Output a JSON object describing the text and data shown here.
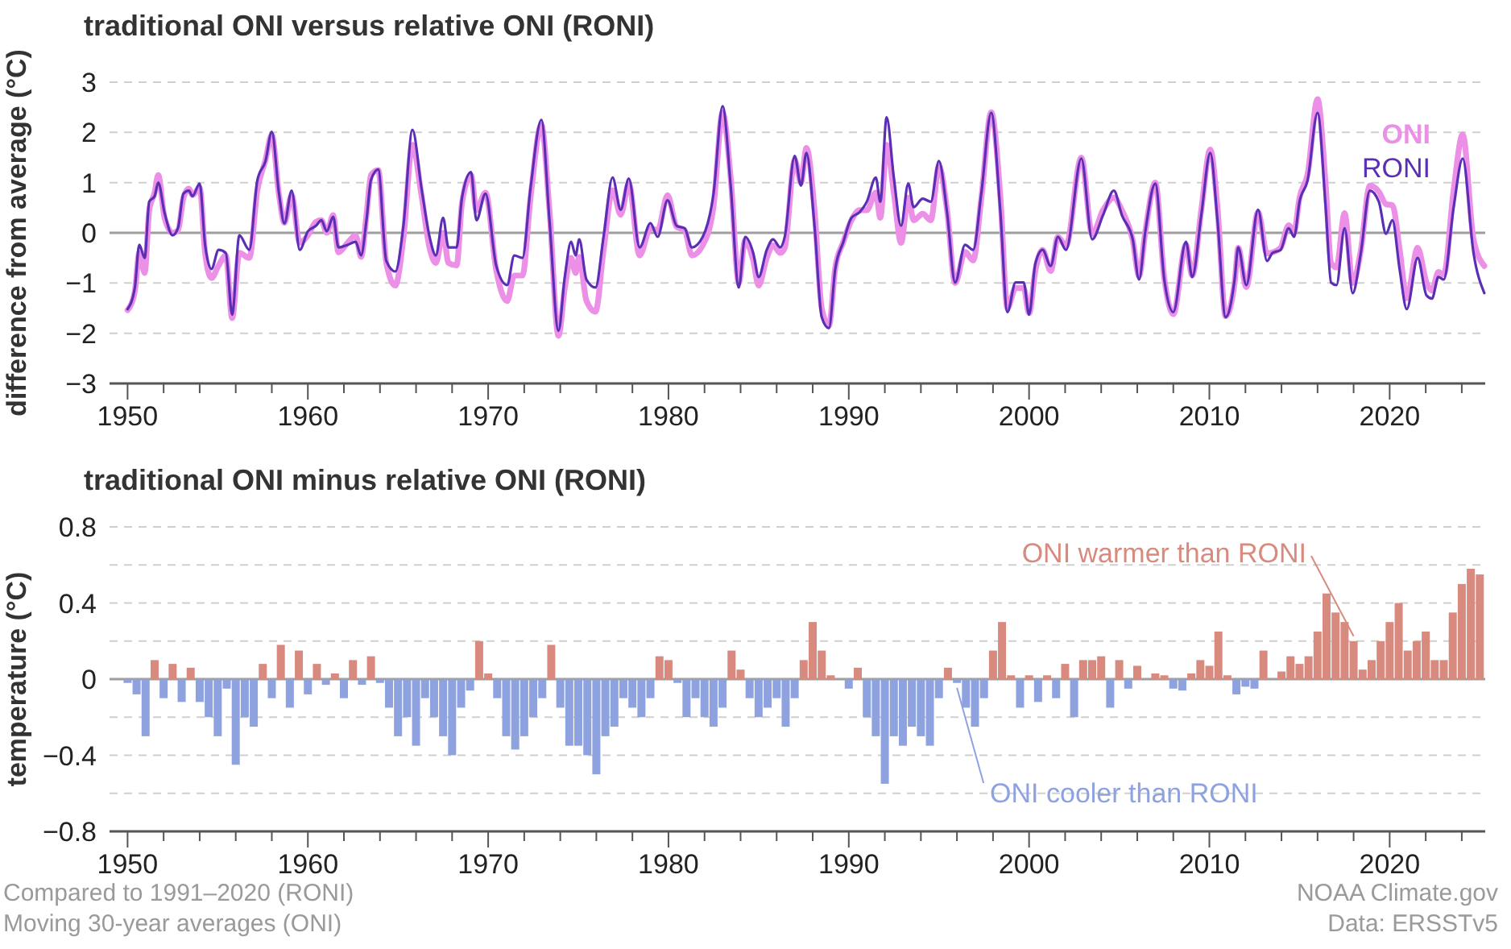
{
  "chart_data": [
    {
      "type": "line",
      "title": "traditional ONI versus relative ONI (RONI)",
      "ylabel": "difference from average (°C)",
      "grid": "y",
      "legend": false,
      "xlim": [
        1949,
        2025.3
      ],
      "ylim": [
        -3,
        3
      ],
      "xticks": [
        1950,
        {
          "value": 1952,
          "label": null
        },
        {
          "value": 1954,
          "label": null
        },
        {
          "value": 1956,
          "label": null
        },
        {
          "value": 1958,
          "label": null
        },
        1960,
        {
          "value": 1962,
          "label": null
        },
        {
          "value": 1964,
          "label": null
        },
        {
          "value": 1966,
          "label": null
        },
        {
          "value": 1968,
          "label": null
        },
        1970,
        {
          "value": 1972,
          "label": null
        },
        {
          "value": 1974,
          "label": null
        },
        {
          "value": 1976,
          "label": null
        },
        {
          "value": 1978,
          "label": null
        },
        1980,
        {
          "value": 1982,
          "label": null
        },
        {
          "value": 1984,
          "label": null
        },
        {
          "value": 1986,
          "label": null
        },
        {
          "value": 1988,
          "label": null
        },
        1990,
        {
          "value": 1992,
          "label": null
        },
        {
          "value": 1994,
          "label": null
        },
        {
          "value": 1996,
          "label": null
        },
        {
          "value": 1998,
          "label": null
        },
        2000,
        {
          "value": 2002,
          "label": null
        },
        {
          "value": 2004,
          "label": null
        },
        {
          "value": 2006,
          "label": null
        },
        {
          "value": 2008,
          "label": null
        },
        2010,
        {
          "value": 2012,
          "label": null
        },
        {
          "value": 2014,
          "label": null
        },
        {
          "value": 2016,
          "label": null
        },
        {
          "value": 2018,
          "label": null
        },
        2020,
        {
          "value": 2022,
          "label": null
        },
        {
          "value": 2024,
          "label": null
        }
      ],
      "yticks": [
        {
          "value": -3,
          "label": "−3"
        },
        {
          "value": -2,
          "label": "−2"
        },
        {
          "value": -1,
          "label": "−1"
        },
        0,
        1,
        2,
        3
      ],
      "ref_lines": [
        {
          "axis": "y",
          "value": 0,
          "color": "#9e9e9e"
        }
      ],
      "x": [
        1950.0,
        1950.4,
        1950.65,
        1950.95,
        1951.2,
        1951.5,
        1951.7,
        1952.05,
        1952.5,
        1952.8,
        1953.1,
        1953.4,
        1953.6,
        1954.0,
        1954.3,
        1954.65,
        1955.05,
        1955.45,
        1955.8,
        1956.2,
        1956.75,
        1957.2,
        1957.65,
        1958.0,
        1958.4,
        1958.7,
        1959.1,
        1959.55,
        1960.0,
        1960.45,
        1960.75,
        1961.05,
        1961.4,
        1961.7,
        1962.2,
        1962.65,
        1962.95,
        1963.25,
        1963.5,
        1963.9,
        1964.35,
        1964.85,
        1965.3,
        1965.8,
        1966.3,
        1966.75,
        1967.1,
        1967.5,
        1967.8,
        1968.25,
        1968.55,
        1969.05,
        1969.35,
        1969.85,
        1970.45,
        1971.05,
        1971.45,
        1971.9,
        1972.35,
        1972.95,
        1973.4,
        1973.9,
        1974.25,
        1974.6,
        1974.85,
        1975.05,
        1975.45,
        1975.95,
        1976.4,
        1976.9,
        1977.35,
        1977.8,
        1978.4,
        1979.0,
        1979.4,
        1979.95,
        1980.45,
        1980.9,
        1981.3,
        1981.9,
        1982.5,
        1983.0,
        1983.45,
        1983.9,
        1984.25,
        1984.7,
        1985.0,
        1985.45,
        1985.8,
        1986.2,
        1986.45,
        1987.0,
        1987.35,
        1987.65,
        1988.1,
        1988.5,
        1988.9,
        1989.25,
        1989.7,
        1990.15,
        1990.6,
        1991.0,
        1991.5,
        1991.75,
        1992.1,
        1992.5,
        1992.9,
        1993.3,
        1993.6,
        1994.1,
        1994.55,
        1995.0,
        1995.45,
        1995.9,
        1996.45,
        1996.9,
        1997.35,
        1997.9,
        1998.4,
        1998.8,
        1999.25,
        1999.7,
        2000.0,
        2000.35,
        2000.75,
        2001.2,
        2001.6,
        2002.05,
        2002.9,
        2003.5,
        2004.1,
        2004.7,
        2005.15,
        2005.75,
        2006.1,
        2006.45,
        2007.0,
        2007.5,
        2008.0,
        2008.7,
        2009.05,
        2009.55,
        2010.05,
        2010.45,
        2010.9,
        2011.4,
        2011.6,
        2012.05,
        2012.7,
        2013.2,
        2013.5,
        2013.95,
        2014.4,
        2014.7,
        2015.0,
        2015.45,
        2016.0,
        2016.45,
        2016.75,
        2017.05,
        2017.5,
        2017.95,
        2018.4,
        2018.9,
        2019.4,
        2019.8,
        2020.15,
        2020.55,
        2020.95,
        2021.55,
        2022.05,
        2022.35,
        2022.7,
        2023.0,
        2023.55,
        2024.05,
        2024.65,
        2025.25
      ],
      "series": [
        {
          "name": "ONI",
          "color": "#ec8fe6",
          "values": [
            -1.54,
            -1.17,
            -0.4,
            -0.8,
            0.45,
            0.8,
            1.15,
            0.3,
            0.0,
            0.05,
            0.7,
            0.88,
            0.75,
            0.9,
            -0.4,
            -0.9,
            -0.65,
            -0.45,
            -1.7,
            -0.4,
            -0.5,
            0.85,
            1.45,
            1.95,
            0.75,
            0.2,
            0.75,
            -0.2,
            -0.05,
            0.22,
            0.25,
            0.0,
            0.35,
            -0.39,
            -0.2,
            -0.05,
            -0.48,
            0.35,
            1.15,
            1.25,
            -0.6,
            -1.05,
            -0.1,
            1.75,
            0.75,
            -0.3,
            -0.6,
            0.0,
            -0.6,
            -0.65,
            0.6,
            1.15,
            0.45,
            0.8,
            -0.75,
            -1.36,
            -0.85,
            -0.85,
            0.7,
            2.15,
            0.45,
            -2.05,
            -1.1,
            -0.5,
            -0.8,
            -0.48,
            -1.35,
            -1.57,
            -0.35,
            0.85,
            0.36,
            0.98,
            -0.45,
            0.09,
            0.05,
            0.75,
            0.12,
            0.05,
            -0.45,
            -0.25,
            0.53,
            2.4,
            1.1,
            -1.0,
            -0.15,
            -0.55,
            -1.05,
            -0.5,
            -0.25,
            -0.4,
            -0.3,
            1.45,
            1.0,
            1.69,
            0.45,
            -1.5,
            -1.85,
            -0.7,
            -0.18,
            0.25,
            0.45,
            0.45,
            0.8,
            0.3,
            1.75,
            0.8,
            -0.2,
            0.7,
            0.25,
            0.38,
            0.25,
            1.33,
            0.45,
            -1.0,
            -0.38,
            -0.55,
            0.68,
            2.4,
            0.76,
            -1.5,
            -1.1,
            -1.1,
            -1.6,
            -0.75,
            -0.34,
            -0.76,
            -0.08,
            -0.26,
            1.5,
            -0.03,
            0.45,
            0.7,
            0.45,
            -0.15,
            -0.86,
            0.03,
            1.0,
            -0.9,
            -1.62,
            -0.24,
            -0.85,
            0.45,
            1.66,
            0.5,
            -1.66,
            -1.0,
            -0.3,
            -1.08,
            0.41,
            -0.41,
            -0.39,
            -0.3,
            0.15,
            0.02,
            0.7,
            1.17,
            2.66,
            0.96,
            -0.6,
            -0.69,
            0.39,
            -1.0,
            -0.35,
            0.94,
            0.82,
            0.57,
            0.55,
            -0.32,
            -1.3,
            -0.3,
            -1.0,
            -1.15,
            -0.78,
            -0.83,
            0.86,
            1.96,
            -0.13,
            -0.66
          ]
        },
        {
          "name": "RONI",
          "color": "#5a2fb5",
          "values": [
            -1.52,
            -1.1,
            -0.24,
            -0.5,
            0.62,
            0.73,
            1.0,
            0.4,
            -0.05,
            0.1,
            0.78,
            0.84,
            0.73,
            0.98,
            -0.24,
            -0.72,
            -0.34,
            -0.4,
            -1.63,
            -0.05,
            -0.34,
            1.05,
            1.43,
            2.01,
            0.78,
            0.19,
            0.84,
            -0.34,
            0.03,
            0.14,
            0.25,
            0.03,
            0.32,
            -0.29,
            -0.24,
            -0.18,
            -0.45,
            0.25,
            1.05,
            1.26,
            -0.56,
            -0.77,
            0.14,
            2.05,
            0.89,
            -0.08,
            -0.45,
            0.3,
            -0.29,
            -0.29,
            0.7,
            1.21,
            0.25,
            0.78,
            -0.66,
            -1.04,
            -0.45,
            -0.5,
            0.89,
            2.25,
            0.25,
            -1.95,
            -0.88,
            -0.18,
            -0.45,
            -0.13,
            -0.93,
            -1.09,
            -0.08,
            1.1,
            0.46,
            1.08,
            -0.29,
            0.19,
            -0.08,
            0.65,
            0.14,
            0.09,
            -0.29,
            -0.08,
            0.78,
            2.52,
            0.94,
            -1.09,
            -0.08,
            -0.4,
            -0.88,
            -0.34,
            -0.13,
            -0.29,
            -0.08,
            1.53,
            0.94,
            1.59,
            0.14,
            -1.68,
            -1.9,
            -0.72,
            -0.18,
            0.3,
            0.41,
            0.62,
            1.1,
            0.62,
            2.3,
            1.1,
            0.14,
            0.98,
            0.51,
            0.68,
            0.62,
            1.43,
            0.41,
            -0.99,
            -0.24,
            -0.34,
            0.78,
            2.39,
            0.46,
            -1.58,
            -0.99,
            -0.99,
            -1.63,
            -0.61,
            -0.34,
            -0.66,
            -0.08,
            -0.34,
            1.48,
            -0.13,
            0.35,
            0.84,
            0.35,
            -0.13,
            -0.93,
            0.03,
            0.98,
            -0.93,
            -1.58,
            -0.18,
            -0.88,
            0.35,
            1.59,
            0.25,
            -1.68,
            -0.93,
            -0.29,
            -1.04,
            0.46,
            -0.56,
            -0.4,
            -0.34,
            0.09,
            -0.08,
            0.62,
            1.05,
            2.39,
            0.51,
            -0.99,
            -1.04,
            0.09,
            -1.2,
            -0.4,
            0.84,
            0.62,
            -0.02,
            0.25,
            -0.72,
            -1.52,
            -0.5,
            -1.25,
            -1.31,
            -0.88,
            -0.93,
            0.51,
            1.48,
            -0.4,
            -1.2
          ]
        }
      ]
    },
    {
      "type": "bar",
      "title": "traditional ONI minus relative ONI (RONI)",
      "ylabel": "temperature (°C)",
      "grid": "y",
      "legend": false,
      "xlim": [
        1949,
        2025.3
      ],
      "ylim": [
        -0.8,
        0.8
      ],
      "xticks": [
        1950,
        {
          "value": 1952,
          "label": null
        },
        {
          "value": 1954,
          "label": null
        },
        {
          "value": 1956,
          "label": null
        },
        {
          "value": 1958,
          "label": null
        },
        1960,
        {
          "value": 1962,
          "label": null
        },
        {
          "value": 1964,
          "label": null
        },
        {
          "value": 1966,
          "label": null
        },
        {
          "value": 1968,
          "label": null
        },
        1970,
        {
          "value": 1972,
          "label": null
        },
        {
          "value": 1974,
          "label": null
        },
        {
          "value": 1976,
          "label": null
        },
        {
          "value": 1978,
          "label": null
        },
        1980,
        {
          "value": 1982,
          "label": null
        },
        {
          "value": 1984,
          "label": null
        },
        {
          "value": 1986,
          "label": null
        },
        {
          "value": 1988,
          "label": null
        },
        1990,
        {
          "value": 1992,
          "label": null
        },
        {
          "value": 1994,
          "label": null
        },
        {
          "value": 1996,
          "label": null
        },
        {
          "value": 1998,
          "label": null
        },
        2000,
        {
          "value": 2002,
          "label": null
        },
        {
          "value": 2004,
          "label": null
        },
        {
          "value": 2006,
          "label": null
        },
        {
          "value": 2008,
          "label": null
        },
        2010,
        {
          "value": 2012,
          "label": null
        },
        {
          "value": 2014,
          "label": null
        },
        {
          "value": 2016,
          "label": null
        },
        {
          "value": 2018,
          "label": null
        },
        2020,
        {
          "value": 2022,
          "label": null
        },
        {
          "value": 2024,
          "label": null
        }
      ],
      "yticks": [
        {
          "value": -0.8,
          "label": "−0.8"
        },
        {
          "value": -0.6,
          "label": null
        },
        {
          "value": -0.4,
          "label": "−0.4"
        },
        {
          "value": -0.2,
          "label": null
        },
        0,
        {
          "value": 0.2,
          "label": null
        },
        0.4,
        {
          "value": 0.6,
          "label": null
        },
        0.8
      ],
      "ref_lines": [
        {
          "axis": "y",
          "value": 0,
          "color": "#9e9e9e"
        }
      ],
      "annotations": [
        "Compared to 1991–2020 (RONI)",
        "Moving 30-year averages (ONI)",
        "NOAA Climate.gov",
        "Data: ERSSTv5"
      ],
      "series": [
        {
          "name": "ONI warmer than RONI",
          "color": "#d98a7e",
          "x": [
            1951.5,
            1952.5,
            1953.5,
            1957.5,
            1958.5,
            1959.5,
            1960.5,
            1961.5,
            1962.5,
            1963.5,
            1969.5,
            1970.0,
            1973.5,
            1979.5,
            1980.0,
            1983.5,
            1984.0,
            1987.5,
            1988.0,
            1988.5,
            1989.0,
            1990.5,
            1995.5,
            1998.0,
            1998.5,
            1999.0,
            2000.0,
            2001.0,
            2002.0,
            2003.0,
            2003.5,
            2004.0,
            2005.0,
            2006.0,
            2007.0,
            2007.5,
            2009.0,
            2009.5,
            2010.0,
            2010.5,
            2011.0,
            2013.0,
            2014.0,
            2014.5,
            2015.0,
            2015.5,
            2016.0,
            2016.5,
            2017.0,
            2017.5,
            2018.0,
            2018.5,
            2019.0,
            2019.5,
            2020.0,
            2020.5,
            2021.0,
            2021.5,
            2022.0,
            2022.5,
            2023.0,
            2023.5,
            2024.0,
            2024.5,
            2025.0
          ],
          "values": [
            0.1,
            0.08,
            0.06,
            0.08,
            0.18,
            0.15,
            0.08,
            0.03,
            0.1,
            0.12,
            0.2,
            0.03,
            0.18,
            0.12,
            0.1,
            0.15,
            0.05,
            0.1,
            0.3,
            0.15,
            0.02,
            0.06,
            0.06,
            0.15,
            0.3,
            0.02,
            0.02,
            0.02,
            0.08,
            0.1,
            0.1,
            0.12,
            0.1,
            0.07,
            0.03,
            0.02,
            0.03,
            0.1,
            0.07,
            0.25,
            0.02,
            0.15,
            0.04,
            0.12,
            0.08,
            0.12,
            0.25,
            0.45,
            0.35,
            0.3,
            0.2,
            0.05,
            0.1,
            0.2,
            0.3,
            0.4,
            0.15,
            0.2,
            0.25,
            0.1,
            0.1,
            0.35,
            0.5,
            0.58,
            0.55
          ]
        },
        {
          "name": "ONI cooler than RONI",
          "color": "#8ea2e0",
          "x": [
            1950.0,
            1950.5,
            1951.0,
            1952.0,
            1953.0,
            1954.0,
            1954.5,
            1955.0,
            1955.5,
            1956.0,
            1956.5,
            1957.0,
            1958.0,
            1959.0,
            1960.0,
            1961.0,
            1962.0,
            1963.0,
            1964.0,
            1964.5,
            1965.0,
            1965.5,
            1966.0,
            1966.5,
            1967.0,
            1967.5,
            1968.0,
            1968.5,
            1969.0,
            1970.5,
            1971.0,
            1971.5,
            1972.0,
            1972.5,
            1973.0,
            1974.0,
            1974.5,
            1975.0,
            1975.5,
            1976.0,
            1976.5,
            1977.0,
            1977.5,
            1978.0,
            1978.5,
            1979.0,
            1980.5,
            1981.0,
            1981.5,
            1982.0,
            1982.5,
            1983.0,
            1984.5,
            1985.0,
            1985.5,
            1986.0,
            1986.5,
            1987.0,
            1990.0,
            1991.0,
            1991.5,
            1992.0,
            1992.5,
            1993.0,
            1993.5,
            1994.0,
            1994.5,
            1995.0,
            1996.0,
            1996.5,
            1997.0,
            1997.5,
            1999.5,
            2000.5,
            2001.5,
            2002.5,
            2004.5,
            2005.5,
            2008.0,
            2008.5,
            2011.5,
            2012.0,
            2012.5
          ],
          "values": [
            -0.02,
            -0.08,
            -0.3,
            -0.1,
            -0.12,
            -0.12,
            -0.2,
            -0.3,
            -0.05,
            -0.45,
            -0.2,
            -0.25,
            -0.1,
            -0.15,
            -0.08,
            -0.03,
            -0.1,
            -0.03,
            -0.02,
            -0.15,
            -0.3,
            -0.2,
            -0.35,
            -0.1,
            -0.2,
            -0.3,
            -0.4,
            -0.15,
            -0.06,
            -0.1,
            -0.3,
            -0.37,
            -0.3,
            -0.2,
            -0.1,
            -0.15,
            -0.35,
            -0.35,
            -0.4,
            -0.5,
            -0.3,
            -0.25,
            -0.1,
            -0.15,
            -0.2,
            -0.1,
            -0.02,
            -0.2,
            -0.1,
            -0.2,
            -0.25,
            -0.15,
            -0.1,
            -0.2,
            -0.15,
            -0.1,
            -0.25,
            -0.1,
            -0.05,
            -0.2,
            -0.3,
            -0.55,
            -0.3,
            -0.35,
            -0.25,
            -0.3,
            -0.35,
            -0.1,
            -0.02,
            -0.15,
            -0.25,
            -0.1,
            -0.15,
            -0.12,
            -0.1,
            -0.2,
            -0.15,
            -0.05,
            -0.05,
            -0.06,
            -0.08,
            -0.04,
            -0.05
          ]
        }
      ]
    }
  ]
}
